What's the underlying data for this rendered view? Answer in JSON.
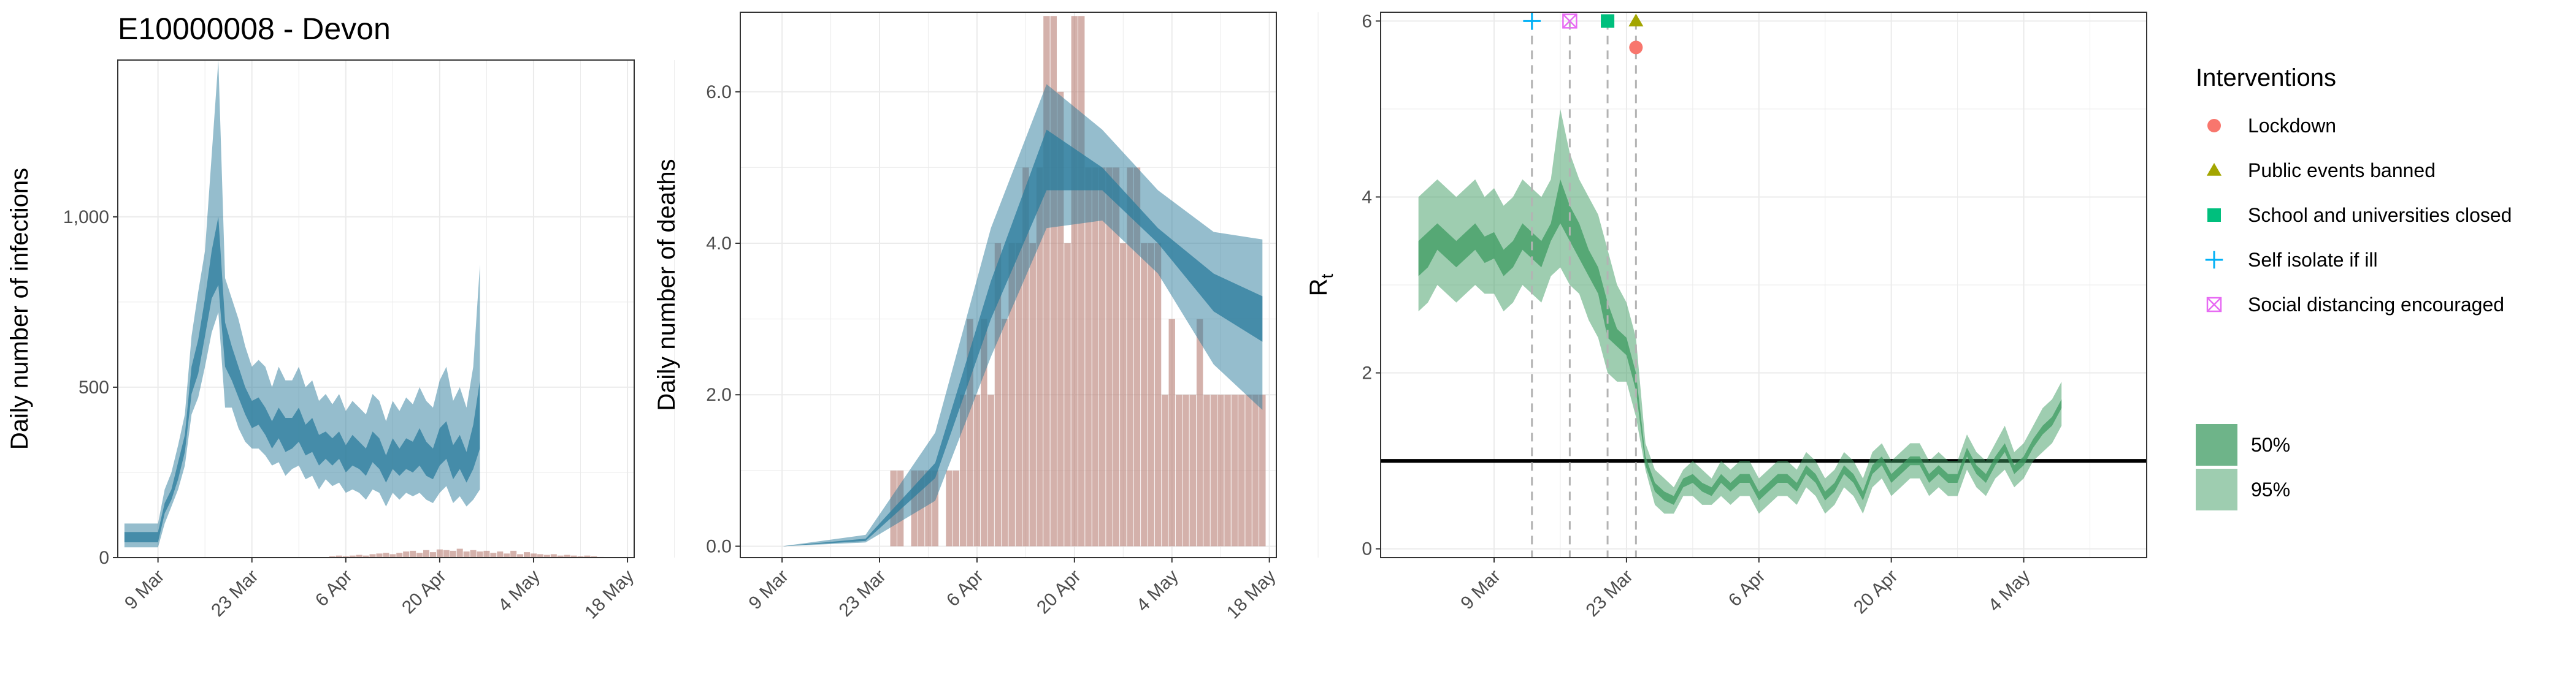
{
  "title": "E10000008 - Devon",
  "colors": {
    "model_band": "#2b7c9c",
    "bar": "#b77d73",
    "rt_band": "#3e9b62",
    "grid": "#ebebeb",
    "lockdown": "#f8766d",
    "public_events": "#a3a500",
    "schools": "#00bf7d",
    "self_isolate": "#00b0f6",
    "social_distancing": "#e76bf3"
  },
  "chart_data": [
    {
      "type": "area",
      "panel": "infections",
      "ylabel": "Daily number of infections",
      "xlabel": "",
      "ylim": [
        0,
        1460
      ],
      "yticks": [
        0,
        500,
        1000
      ],
      "ytick_labels": [
        "0",
        "500",
        "1,000"
      ],
      "xticks": [
        "9 Mar",
        "23 Mar",
        "6 Apr",
        "20 Apr",
        "4 May",
        "18 May"
      ],
      "xtick_days": [
        8,
        22,
        36,
        50,
        64,
        78
      ],
      "x_day_offset": "day 0 = 1 Mar",
      "grid": true,
      "band_series": [
        {
          "level": "95%",
          "lower_from": 3,
          "upper": [
            100,
            100,
            100,
            100,
            100,
            100,
            200,
            250,
            330,
            420,
            650,
            780,
            900,
            1180,
            1460,
            820,
            760,
            700,
            620,
            560,
            580,
            560,
            500,
            560,
            520,
            520,
            560,
            500,
            520,
            460,
            480,
            450,
            480,
            430,
            460,
            440,
            420,
            480,
            460,
            400,
            460,
            430,
            470,
            450,
            500,
            460,
            440,
            520,
            560,
            460,
            500,
            440,
            560,
            860
          ],
          "lower": [
            30,
            30,
            30,
            30,
            30,
            30,
            100,
            150,
            200,
            270,
            420,
            470,
            560,
            660,
            720,
            440,
            440,
            380,
            340,
            320,
            320,
            300,
            270,
            280,
            240,
            260,
            270,
            230,
            240,
            200,
            230,
            210,
            220,
            190,
            200,
            190,
            170,
            200,
            190,
            150,
            190,
            170,
            190,
            180,
            190,
            170,
            160,
            190,
            210,
            160,
            180,
            150,
            170,
            200
          ]
        },
        {
          "level": "50%",
          "lower_from": 3,
          "upper": [
            75,
            75,
            75,
            75,
            75,
            75,
            160,
            200,
            280,
            360,
            560,
            640,
            760,
            900,
            1000,
            690,
            620,
            560,
            500,
            460,
            470,
            440,
            400,
            440,
            410,
            410,
            440,
            390,
            410,
            360,
            370,
            350,
            370,
            330,
            360,
            340,
            320,
            370,
            350,
            300,
            350,
            320,
            350,
            340,
            380,
            340,
            320,
            380,
            400,
            330,
            360,
            310,
            390,
            520
          ],
          "lower": [
            45,
            45,
            45,
            45,
            45,
            45,
            130,
            170,
            230,
            310,
            480,
            540,
            650,
            760,
            800,
            560,
            520,
            470,
            420,
            380,
            390,
            360,
            320,
            350,
            310,
            320,
            340,
            300,
            310,
            270,
            290,
            270,
            290,
            250,
            270,
            260,
            240,
            280,
            260,
            220,
            260,
            240,
            260,
            250,
            270,
            240,
            230,
            270,
            290,
            230,
            260,
            220,
            260,
            320
          ]
        }
      ],
      "bars": {
        "days": [
          34,
          35,
          36,
          37,
          38,
          39,
          40,
          41,
          42,
          43,
          44,
          45,
          46,
          47,
          48,
          49,
          50,
          51,
          52,
          53,
          54,
          55,
          56,
          57,
          58,
          59,
          60,
          61,
          62,
          63,
          64,
          65,
          66,
          67,
          68,
          69,
          70,
          71,
          72,
          73,
          74
        ],
        "values": [
          4,
          6,
          4,
          6,
          8,
          6,
          10,
          12,
          14,
          10,
          14,
          18,
          20,
          14,
          22,
          16,
          24,
          22,
          20,
          26,
          18,
          22,
          18,
          20,
          14,
          18,
          12,
          20,
          10,
          16,
          12,
          10,
          8,
          10,
          6,
          8,
          6,
          4,
          6,
          4,
          2
        ]
      }
    },
    {
      "type": "area",
      "panel": "deaths",
      "ylabel": "Daily number of deaths",
      "xlabel": "",
      "ylim": [
        -0.15,
        7.05
      ],
      "yticks": [
        0,
        2,
        4,
        6
      ],
      "ytick_labels": [
        "0.0",
        "2.0",
        "4.0",
        "6.0"
      ],
      "xticks": [
        "9 Mar",
        "23 Mar",
        "6 Apr",
        "20 Apr",
        "4 May",
        "18 May"
      ],
      "xtick_days": [
        8,
        22,
        36,
        50,
        64,
        78
      ],
      "grid": true,
      "band_series": [
        {
          "level": "95%",
          "x_days": [
            8,
            20,
            30,
            38,
            46,
            54,
            62,
            70,
            77
          ],
          "upper": [
            0,
            0.15,
            1.5,
            4.2,
            6.1,
            5.5,
            4.7,
            4.15,
            4.05
          ],
          "lower": [
            0,
            0.05,
            0.6,
            2.5,
            4.2,
            4.3,
            3.6,
            2.4,
            1.8
          ]
        },
        {
          "level": "50%",
          "x_days": [
            8,
            20,
            30,
            38,
            46,
            54,
            62,
            70,
            77
          ],
          "upper": [
            0,
            0.1,
            1.1,
            3.5,
            5.5,
            5.0,
            4.2,
            3.6,
            3.3
          ],
          "lower": [
            0,
            0.07,
            0.9,
            3.0,
            4.7,
            4.7,
            4.0,
            3.1,
            2.7
          ]
        }
      ],
      "bars": {
        "days": [
          24,
          25,
          26,
          27,
          28,
          29,
          30,
          31,
          32,
          33,
          34,
          35,
          36,
          37,
          38,
          39,
          40,
          41,
          42,
          43,
          44,
          45,
          46,
          47,
          48,
          49,
          50,
          51,
          52,
          53,
          54,
          55,
          56,
          57,
          58,
          59,
          60,
          61,
          62,
          63,
          64,
          65,
          66,
          67,
          68,
          69,
          70,
          71,
          72,
          73,
          74,
          75,
          76,
          77
        ],
        "values": [
          1,
          1,
          0,
          1,
          1,
          1,
          1,
          0,
          1,
          1,
          2,
          3,
          2,
          3,
          2,
          4,
          3,
          4,
          4,
          5,
          4,
          5,
          7,
          7,
          6,
          4,
          7,
          7,
          5,
          5,
          5,
          5,
          5,
          4,
          5,
          5,
          4,
          4,
          4,
          2,
          3,
          2,
          2,
          2,
          3,
          2,
          2,
          2,
          2,
          2,
          2,
          2,
          2,
          2
        ]
      }
    },
    {
      "type": "area",
      "panel": "rt",
      "ylabel": "R",
      "ylabel_subscript": "t",
      "xlabel": "",
      "ylim": [
        -0.1,
        6.1
      ],
      "yticks": [
        0,
        2,
        4,
        6
      ],
      "ytick_labels": [
        "0",
        "2",
        "4",
        "6"
      ],
      "xticks": [
        "9 Mar",
        "23 Mar",
        "6 Apr",
        "20 Apr",
        "4 May"
      ],
      "xtick_days": [
        8,
        22,
        36,
        50,
        64
      ],
      "grid": true,
      "reference_line": 1,
      "band_series": [
        {
          "level": "95%",
          "x_start_day": 0,
          "upper": [
            4.0,
            4.1,
            4.2,
            4.1,
            4.0,
            4.1,
            4.2,
            4.0,
            4.1,
            3.9,
            4.0,
            4.2,
            4.1,
            4.0,
            4.2,
            5.0,
            4.5,
            4.2,
            4.0,
            3.8,
            3.4,
            3.0,
            2.8,
            2.4,
            1.2,
            0.9,
            0.8,
            0.7,
            0.9,
            1.0,
            0.9,
            0.8,
            1.0,
            0.9,
            1.0,
            1.0,
            0.8,
            0.9,
            1.0,
            1.0,
            0.9,
            1.1,
            1.0,
            0.8,
            0.9,
            1.1,
            1.0,
            0.8,
            1.1,
            1.2,
            1.0,
            1.1,
            1.2,
            1.2,
            1.0,
            1.1,
            1.0,
            1.0,
            1.3,
            1.1,
            1.0,
            1.2,
            1.4,
            1.1,
            1.2,
            1.4,
            1.6,
            1.7,
            1.9
          ],
          "lower": [
            2.7,
            2.8,
            3.0,
            2.9,
            2.8,
            2.9,
            3.0,
            2.9,
            2.9,
            2.7,
            2.8,
            3.0,
            2.9,
            2.8,
            3.1,
            3.2,
            3.0,
            2.9,
            2.6,
            2.4,
            2.0,
            1.9,
            1.9,
            1.5,
            0.9,
            0.5,
            0.4,
            0.4,
            0.6,
            0.6,
            0.5,
            0.5,
            0.6,
            0.5,
            0.6,
            0.6,
            0.4,
            0.5,
            0.6,
            0.6,
            0.5,
            0.7,
            0.6,
            0.4,
            0.5,
            0.7,
            0.6,
            0.4,
            0.7,
            0.8,
            0.6,
            0.7,
            0.8,
            0.8,
            0.6,
            0.7,
            0.6,
            0.6,
            0.9,
            0.7,
            0.6,
            0.8,
            0.9,
            0.7,
            0.8,
            1.0,
            1.1,
            1.2,
            1.4
          ]
        },
        {
          "level": "50%",
          "x_start_day": 0,
          "upper": [
            3.5,
            3.6,
            3.7,
            3.6,
            3.5,
            3.6,
            3.7,
            3.55,
            3.6,
            3.4,
            3.5,
            3.7,
            3.6,
            3.5,
            3.7,
            4.2,
            3.9,
            3.7,
            3.4,
            3.2,
            2.8,
            2.5,
            2.4,
            2.0,
            1.05,
            0.75,
            0.65,
            0.6,
            0.8,
            0.85,
            0.75,
            0.7,
            0.85,
            0.75,
            0.85,
            0.85,
            0.65,
            0.75,
            0.85,
            0.85,
            0.75,
            0.95,
            0.85,
            0.65,
            0.75,
            0.95,
            0.85,
            0.65,
            0.95,
            1.05,
            0.85,
            0.95,
            1.05,
            1.05,
            0.85,
            0.95,
            0.85,
            0.85,
            1.15,
            0.95,
            0.85,
            1.05,
            1.2,
            0.95,
            1.05,
            1.25,
            1.4,
            1.5,
            1.7
          ],
          "lower": [
            3.1,
            3.2,
            3.4,
            3.3,
            3.2,
            3.3,
            3.4,
            3.25,
            3.3,
            3.1,
            3.2,
            3.4,
            3.3,
            3.2,
            3.5,
            3.7,
            3.5,
            3.3,
            3.1,
            2.9,
            2.4,
            2.3,
            2.2,
            1.8,
            0.95,
            0.65,
            0.55,
            0.5,
            0.7,
            0.75,
            0.65,
            0.6,
            0.75,
            0.65,
            0.75,
            0.75,
            0.55,
            0.65,
            0.75,
            0.75,
            0.65,
            0.85,
            0.75,
            0.55,
            0.65,
            0.85,
            0.75,
            0.55,
            0.85,
            0.95,
            0.75,
            0.85,
            0.95,
            0.95,
            0.75,
            0.85,
            0.75,
            0.75,
            1.05,
            0.85,
            0.75,
            0.95,
            1.1,
            0.85,
            0.95,
            1.15,
            1.3,
            1.4,
            1.6
          ]
        }
      ],
      "interventions": [
        {
          "name": "Self isolate if ill",
          "day": 12,
          "marker": "plus",
          "color_key": "self_isolate",
          "y": 6.0
        },
        {
          "name": "Social distancing encouraged",
          "day": 16,
          "marker": "boxx",
          "color_key": "social_distancing",
          "y": 6.0
        },
        {
          "name": "School and universities closed",
          "day": 20,
          "marker": "square",
          "color_key": "schools",
          "y": 6.0
        },
        {
          "name": "Public events banned",
          "day": 23,
          "marker": "triangle",
          "color_key": "public_events",
          "y": 6.0
        },
        {
          "name": "Lockdown",
          "day": 23,
          "marker": "circle",
          "color_key": "lockdown",
          "y": 5.7
        }
      ]
    }
  ],
  "legend": {
    "interventions_title": "Interventions",
    "interventions": [
      {
        "label": "Lockdown",
        "marker": "circle",
        "color_key": "lockdown"
      },
      {
        "label": "Public events banned",
        "marker": "triangle",
        "color_key": "public_events"
      },
      {
        "label": "School and universities closed",
        "marker": "square",
        "color_key": "schools"
      },
      {
        "label": "Self isolate if ill",
        "marker": "plus",
        "color_key": "self_isolate"
      },
      {
        "label": "Social distancing encouraged",
        "marker": "boxx",
        "color_key": "social_distancing"
      }
    ],
    "bands": [
      {
        "label": "50%",
        "opacity": 0.75
      },
      {
        "label": "95%",
        "opacity": 0.5
      }
    ]
  }
}
